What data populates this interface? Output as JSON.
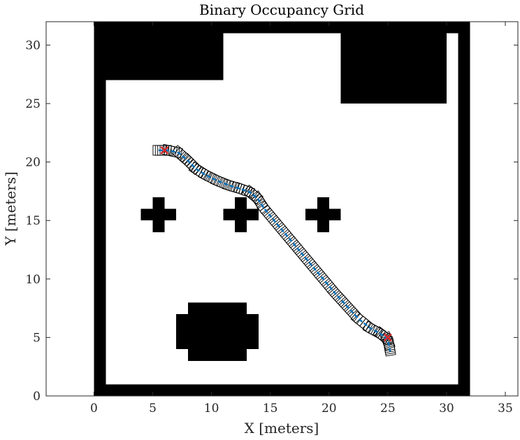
{
  "chart_data": {
    "type": "heatmap",
    "title": "Binary Occupancy Grid",
    "xlabel": "X [meters]",
    "ylabel": "Y [meters]",
    "xlim": [
      -4.07,
      36.07
    ],
    "ylim": [
      0,
      32
    ],
    "xticks": [
      "0",
      "5",
      "10",
      "15",
      "20",
      "25",
      "30",
      "35"
    ],
    "xtick_values": [
      0,
      5,
      10,
      15,
      20,
      25,
      30,
      35
    ],
    "yticks": [
      "0",
      "5",
      "10",
      "15",
      "20",
      "25",
      "30"
    ],
    "ytick_values": [
      0,
      5,
      10,
      15,
      20,
      25,
      30
    ],
    "grid": false,
    "occupancy_map": {
      "size": [
        32,
        32
      ],
      "free_color": "#ffffff",
      "occupied_color": "#000000",
      "occupied_rects": [
        [
          0,
          0,
          1,
          32
        ],
        [
          31,
          0,
          32,
          32
        ],
        [
          0,
          0,
          32,
          1
        ],
        [
          0,
          31,
          32,
          32
        ],
        [
          1,
          27,
          11,
          31
        ],
        [
          21,
          25,
          30,
          31
        ],
        [
          4,
          15,
          7,
          16
        ],
        [
          5,
          14,
          6,
          17
        ],
        [
          11,
          15,
          14,
          16
        ],
        [
          12,
          14,
          13,
          17
        ],
        [
          18,
          15,
          21,
          16
        ],
        [
          19,
          14,
          20,
          17
        ],
        [
          8,
          3,
          13,
          8
        ],
        [
          7,
          4,
          14,
          7
        ]
      ]
    },
    "path": {
      "color": "#0072BD",
      "x": [
        5.5,
        6.3,
        7.2,
        8.0,
        8.7,
        9.5,
        10.5,
        11.5,
        12.5,
        13.3,
        13.9,
        14.5,
        15.5,
        16.5,
        17.5,
        18.5,
        19.5,
        20.5,
        21.5,
        22.5,
        23.5,
        24.4,
        24.9,
        25.1,
        25.2
      ],
      "y": [
        21.0,
        21.0,
        20.8,
        20.1,
        19.4,
        18.9,
        18.4,
        18.0,
        17.7,
        17.4,
        16.9,
        16.0,
        14.8,
        13.6,
        12.4,
        11.2,
        10.0,
        8.8,
        7.7,
        6.6,
        5.8,
        5.3,
        4.9,
        4.4,
        3.8
      ]
    },
    "start": {
      "x": 6.0,
      "y": 21.0
    },
    "goal": {
      "x": 25.0,
      "y": 5.0
    },
    "markers_color": "#d62728"
  }
}
